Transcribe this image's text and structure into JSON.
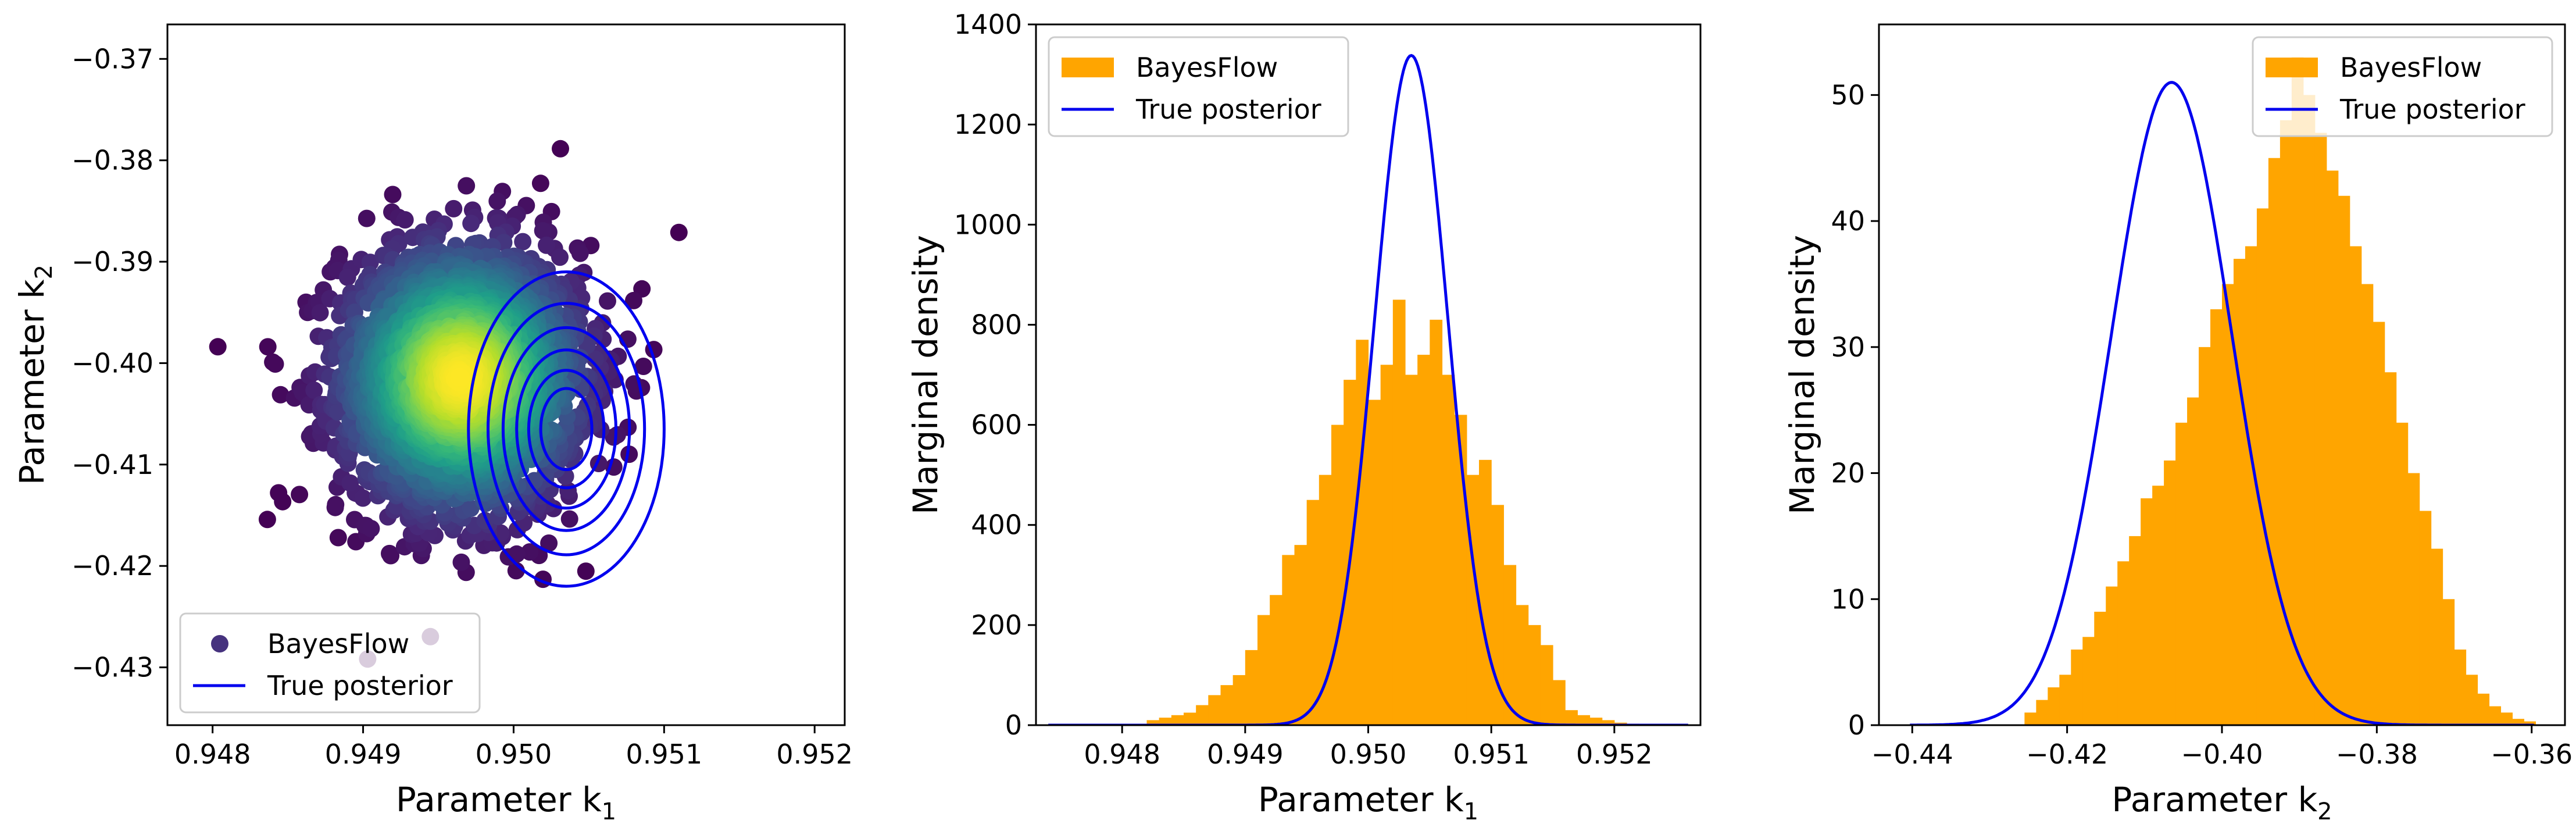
{
  "chart_data": [
    {
      "type": "scatter",
      "xlabel": "Parameter k",
      "xlabel_sub": "1",
      "ylabel": "Parameter k",
      "ylabel_sub": "2",
      "xlim": [
        0.9477,
        0.9522
      ],
      "ylim": [
        -0.4357,
        -0.3666
      ],
      "xticks": [
        0.948,
        0.949,
        0.95,
        0.951,
        0.952
      ],
      "xtick_labels": [
        "0.948",
        "0.949",
        "0.950",
        "0.951",
        "0.952"
      ],
      "yticks": [
        -0.37,
        -0.38,
        -0.39,
        -0.4,
        -0.41,
        -0.42,
        -0.43
      ],
      "ytick_labels": [
        "−0.37",
        "−0.38",
        "−0.39",
        "−0.40",
        "−0.41",
        "−0.42",
        "−0.43"
      ],
      "scatter_center": [
        0.94965,
        -0.4015
      ],
      "scatter_spread": [
        0.0004,
        0.0066
      ],
      "scatter_colormap": "viridis",
      "contour_center": [
        0.95035,
        -0.4065
      ],
      "contour_semi_axes": [
        [
          0.00065,
          0.0155
        ],
        [
          0.00052,
          0.0124
        ],
        [
          0.00042,
          0.01
        ],
        [
          0.00033,
          0.0078
        ],
        [
          0.00025,
          0.0058
        ],
        [
          0.00017,
          0.004
        ]
      ],
      "contour_color": "#0000ee",
      "legend": {
        "placement": "lower-left",
        "entries": [
          {
            "label": "BayesFlow",
            "marker": "circle",
            "color": "#46327e"
          },
          {
            "label": "True posterior",
            "marker": "line",
            "color": "#0000ee"
          }
        ]
      }
    },
    {
      "type": "bar",
      "subtype": "histogram",
      "xlabel": "Parameter k",
      "xlabel_sub": "1",
      "ylabel": "Marginal density",
      "xlim": [
        0.9473,
        0.9527
      ],
      "ylim": [
        0,
        1400
      ],
      "xticks": [
        0.948,
        0.949,
        0.95,
        0.951,
        0.952
      ],
      "xtick_labels": [
        "0.948",
        "0.949",
        "0.950",
        "0.951",
        "0.952"
      ],
      "yticks": [
        0,
        200,
        400,
        600,
        800,
        1000,
        1200,
        1400
      ],
      "ytick_labels": [
        "0",
        "200",
        "400",
        "600",
        "800",
        "1000",
        "1200",
        "1400"
      ],
      "bin_start": 0.9482,
      "bin_width": 0.0001,
      "bin_values": [
        10,
        15,
        20,
        25,
        40,
        60,
        80,
        100,
        150,
        220,
        260,
        340,
        360,
        450,
        500,
        600,
        690,
        770,
        650,
        720,
        850,
        700,
        740,
        810,
        700,
        620,
        500,
        530,
        440,
        320,
        240,
        200,
        160,
        90,
        30,
        20,
        15,
        10,
        5,
        3
      ],
      "bar_color": "#ffa500",
      "curve": {
        "name": "True posterior",
        "type": "normal",
        "mean": 0.95035,
        "sd": 0.000298,
        "peak": 1338,
        "x_range": [
          0.9474,
          0.9526
        ],
        "color": "#0000ee"
      },
      "legend": {
        "placement": "top-left",
        "entries": [
          {
            "label": "BayesFlow",
            "marker": "patch",
            "color": "#ffa500"
          },
          {
            "label": "True posterior",
            "marker": "line",
            "color": "#0000ee"
          }
        ]
      }
    },
    {
      "type": "bar",
      "subtype": "histogram",
      "xlabel": "Parameter k",
      "xlabel_sub": "2",
      "ylabel": "Marginal density",
      "xlim": [
        -0.4443,
        -0.3557
      ],
      "ylim": [
        0,
        55.6
      ],
      "xticks": [
        -0.44,
        -0.42,
        -0.4,
        -0.38,
        -0.36
      ],
      "xtick_labels": [
        "−0.44",
        "−0.42",
        "−0.40",
        "−0.38",
        "−0.36"
      ],
      "yticks": [
        0,
        10,
        20,
        30,
        40,
        50
      ],
      "ytick_labels": [
        "0",
        "10",
        "20",
        "30",
        "40",
        "50"
      ],
      "bin_start": -0.4255,
      "bin_width": 0.0015,
      "bin_values": [
        1,
        2,
        3,
        4,
        6,
        7,
        9,
        11,
        13,
        15,
        18,
        19,
        21,
        24,
        26,
        30,
        33,
        35,
        37,
        38,
        41,
        45,
        48,
        53,
        50,
        47,
        44,
        42,
        38,
        35,
        32,
        28,
        24,
        20,
        17,
        14,
        10,
        6,
        4,
        2.5,
        1.5,
        1,
        0.5,
        0.3
      ],
      "bar_color": "#ffa500",
      "curve": {
        "name": "True posterior",
        "type": "normal",
        "mean": -0.4065,
        "sd": 0.0078,
        "peak": 51,
        "x_range": [
          -0.4403,
          -0.3597
        ],
        "color": "#0000ee"
      },
      "legend": {
        "placement": "top-right",
        "entries": [
          {
            "label": "BayesFlow",
            "marker": "patch",
            "color": "#ffa500"
          },
          {
            "label": "True posterior",
            "marker": "line",
            "color": "#0000ee"
          }
        ]
      }
    }
  ]
}
